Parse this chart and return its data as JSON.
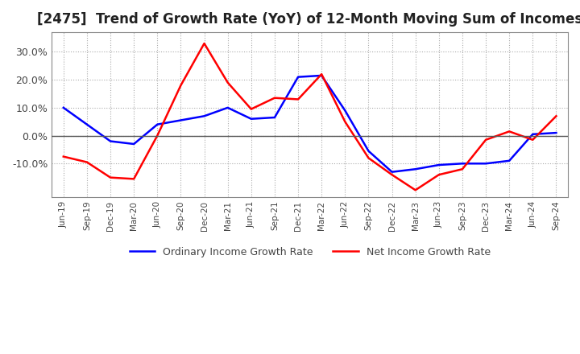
{
  "title": "[2475]  Trend of Growth Rate (YoY) of 12-Month Moving Sum of Incomes",
  "title_fontsize": 12,
  "x_labels": [
    "Jun-19",
    "Sep-19",
    "Dec-19",
    "Mar-20",
    "Jun-20",
    "Sep-20",
    "Dec-20",
    "Mar-21",
    "Jun-21",
    "Sep-21",
    "Dec-21",
    "Mar-22",
    "Jun-22",
    "Sep-22",
    "Dec-22",
    "Mar-23",
    "Jun-23",
    "Sep-23",
    "Dec-23",
    "Mar-24",
    "Jun-24",
    "Sep-24"
  ],
  "ordinary_income": [
    10.0,
    4.0,
    -2.0,
    -3.0,
    4.0,
    5.5,
    7.0,
    10.0,
    6.0,
    6.5,
    21.0,
    21.5,
    9.0,
    -5.5,
    -13.0,
    -12.0,
    -10.5,
    -10.0,
    -10.0,
    -9.0,
    0.5,
    1.0
  ],
  "net_income": [
    -7.5,
    -9.5,
    -15.0,
    -15.5,
    0.0,
    18.0,
    33.0,
    19.0,
    9.5,
    13.5,
    13.0,
    22.0,
    5.0,
    -8.0,
    -14.0,
    -19.5,
    -14.0,
    -12.0,
    -1.5,
    1.5,
    -1.5,
    7.0
  ],
  "ordinary_color": "#0000FF",
  "net_color": "#FF0000",
  "ylim": [
    -22,
    37
  ],
  "yticks": [
    -10.0,
    0.0,
    10.0,
    20.0,
    30.0
  ],
  "background_color": "#FFFFFF",
  "grid_color": "#AAAAAA",
  "legend_labels": [
    "Ordinary Income Growth Rate",
    "Net Income Growth Rate"
  ]
}
